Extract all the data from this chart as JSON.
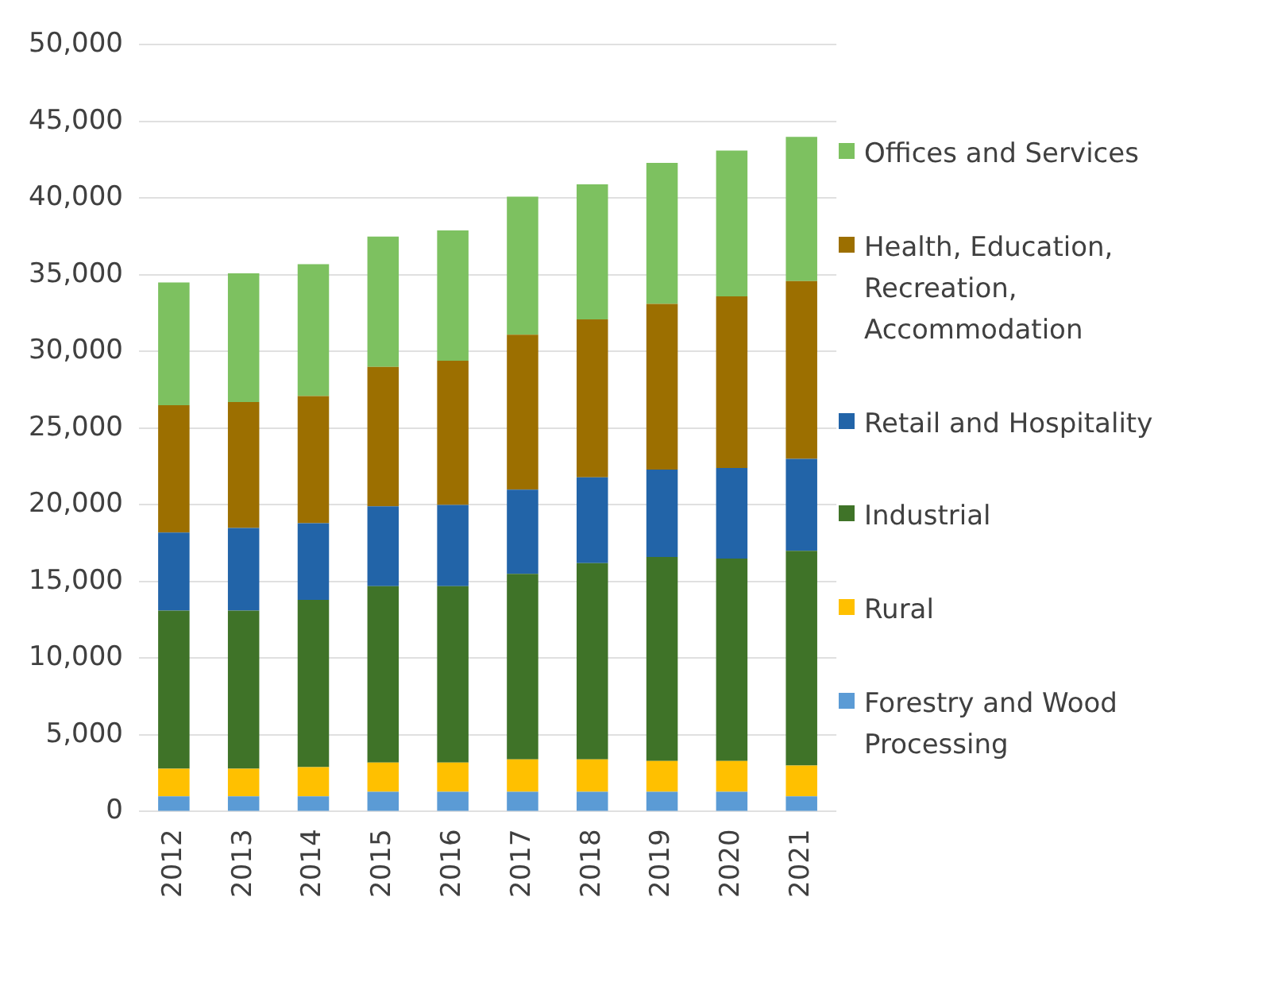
{
  "chart_data": {
    "type": "bar",
    "stacked": true,
    "categories": [
      "2012",
      "2013",
      "2014",
      "2015",
      "2016",
      "2017",
      "2018",
      "2019",
      "2020",
      "2021"
    ],
    "series": [
      {
        "name": "Forestry and Wood Processing",
        "color": "#5b9bd5",
        "values": [
          1000,
          1000,
          1000,
          1300,
          1300,
          1300,
          1300,
          1300,
          1300,
          1000
        ]
      },
      {
        "name": "Rural",
        "color": "#ffc000",
        "values": [
          1800,
          1800,
          1900,
          1900,
          1900,
          2100,
          2100,
          2000,
          2000,
          2000
        ]
      },
      {
        "name": "Industrial",
        "color": "#3f7328",
        "values": [
          10300,
          10300,
          10900,
          11500,
          11500,
          12100,
          12800,
          13300,
          13200,
          14000
        ]
      },
      {
        "name": "Retail and Hospitality",
        "color": "#2264a8",
        "values": [
          5100,
          5400,
          5000,
          5200,
          5300,
          5500,
          5600,
          5700,
          5900,
          6000
        ]
      },
      {
        "name": "Health, Education, Recreation, Accommodation",
        "color": "#9c6f00",
        "values": [
          8300,
          8200,
          8300,
          9100,
          9400,
          10100,
          10300,
          10800,
          11200,
          11600
        ]
      },
      {
        "name": "Offices and Services",
        "color": "#7dc160",
        "values": [
          8000,
          8400,
          8600,
          8500,
          8500,
          9000,
          8800,
          9200,
          9500,
          9400
        ]
      }
    ],
    "ylim": [
      0,
      50000
    ],
    "yticks": [
      {
        "value": 0,
        "label": "0"
      },
      {
        "value": 5000,
        "label": "5,000"
      },
      {
        "value": 10000,
        "label": "10,000"
      },
      {
        "value": 15000,
        "label": "15,000"
      },
      {
        "value": 20000,
        "label": "20,000"
      },
      {
        "value": 25000,
        "label": "25,000"
      },
      {
        "value": 30000,
        "label": "30,000"
      },
      {
        "value": 35000,
        "label": "35,000"
      },
      {
        "value": 40000,
        "label": "40,000"
      },
      {
        "value": 45000,
        "label": "45,000"
      },
      {
        "value": 50000,
        "label": "50,000"
      }
    ],
    "grid": "y",
    "legend": "right"
  }
}
